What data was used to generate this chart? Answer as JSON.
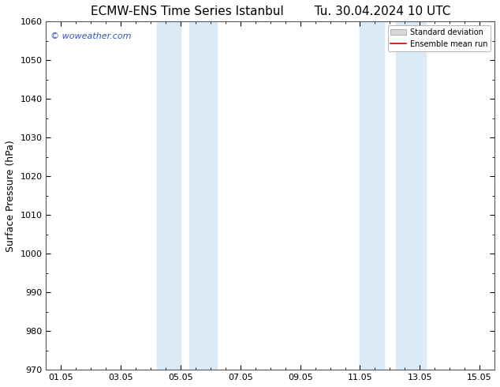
{
  "title_left": "ECMW-ENS Time Series Istanbul",
  "title_right": "Tu. 30.04.2024 10 UTC",
  "ylabel": "Surface Pressure (hPa)",
  "ylim": [
    970,
    1060
  ],
  "yticks": [
    970,
    980,
    990,
    1000,
    1010,
    1020,
    1030,
    1040,
    1050,
    1060
  ],
  "xtick_labels": [
    "01.05",
    "03.05",
    "05.05",
    "07.05",
    "09.05",
    "11.05",
    "13.05",
    "15.05"
  ],
  "xtick_positions": [
    0,
    2,
    4,
    6,
    8,
    10,
    12,
    14
  ],
  "xlim": [
    -0.5,
    14.5
  ],
  "shaded_bands": [
    {
      "x_start": 3.2,
      "x_end": 4.0
    },
    {
      "x_start": 4.3,
      "x_end": 5.2
    },
    {
      "x_start": 10.0,
      "x_end": 10.8
    },
    {
      "x_start": 11.2,
      "x_end": 12.2
    }
  ],
  "shade_color": "#daeaf7",
  "background_color": "#ffffff",
  "watermark_text": "© woweather.com",
  "watermark_color": "#3355bb",
  "legend_items": [
    "Standard deviation",
    "Ensemble mean run"
  ],
  "legend_patch_color": "#d8d8d8",
  "legend_line_color": "#cc0000",
  "spine_color": "#555555",
  "title_fontsize": 11,
  "label_fontsize": 9,
  "tick_fontsize": 8
}
